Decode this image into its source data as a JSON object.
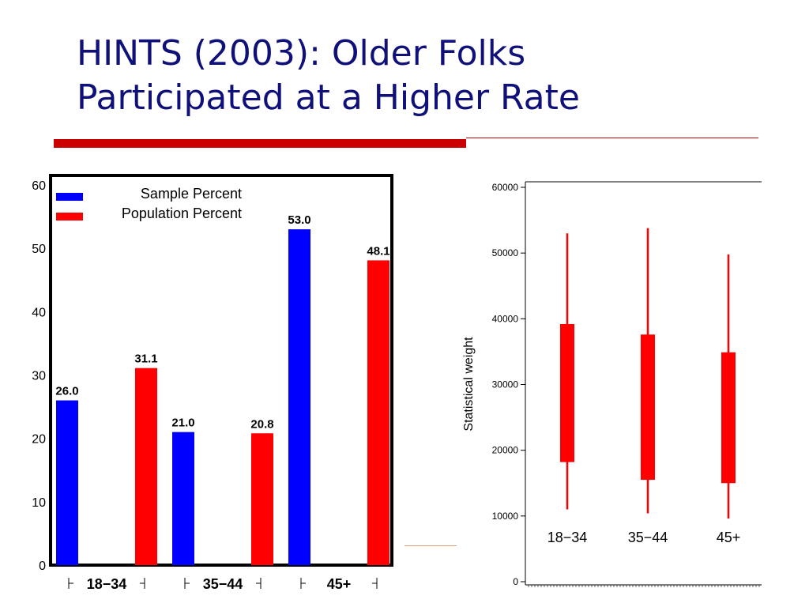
{
  "slide": {
    "title_line1": "HINTS (2003): Older Folks",
    "title_line2": "Participated at a Higher Rate",
    "title_color": "#10107a",
    "accent_color": "#cc0000"
  },
  "chart_data": [
    {
      "type": "bar",
      "categories": [
        "18−34",
        "35−44",
        "45+"
      ],
      "series": [
        {
          "name": "Sample Percent",
          "color": "#0000ff",
          "values": [
            26.0,
            21.0,
            53.0
          ],
          "labels": [
            "26.0",
            "21.0",
            "53.0"
          ]
        },
        {
          "name": "Population Percent",
          "color": "#ff0000",
          "values": [
            31.1,
            20.8,
            48.1
          ],
          "labels": [
            "31.1",
            "20.8",
            "48.1"
          ]
        }
      ],
      "ylim": [
        0,
        60
      ],
      "yticks": [
        0,
        10,
        20,
        30,
        40,
        50,
        60
      ],
      "legend": "top-left",
      "grid": false
    },
    {
      "type": "box",
      "categories": [
        "18−34",
        "35−44",
        "45+"
      ],
      "ylabel": "Statistical weight",
      "ylim": [
        0,
        60000
      ],
      "yticks": [
        0,
        10000,
        20000,
        30000,
        40000,
        50000,
        60000
      ],
      "color": "#ff0000",
      "boxes": [
        {
          "whisker_low": 11000,
          "q1": 18200,
          "q3": 39200,
          "whisker_high": 53000
        },
        {
          "whisker_low": 10400,
          "q1": 15500,
          "q3": 37600,
          "whisker_high": 53800
        },
        {
          "whisker_low": 9600,
          "q1": 15000,
          "q3": 34900,
          "whisker_high": 49800
        }
      ],
      "grid": false
    }
  ]
}
